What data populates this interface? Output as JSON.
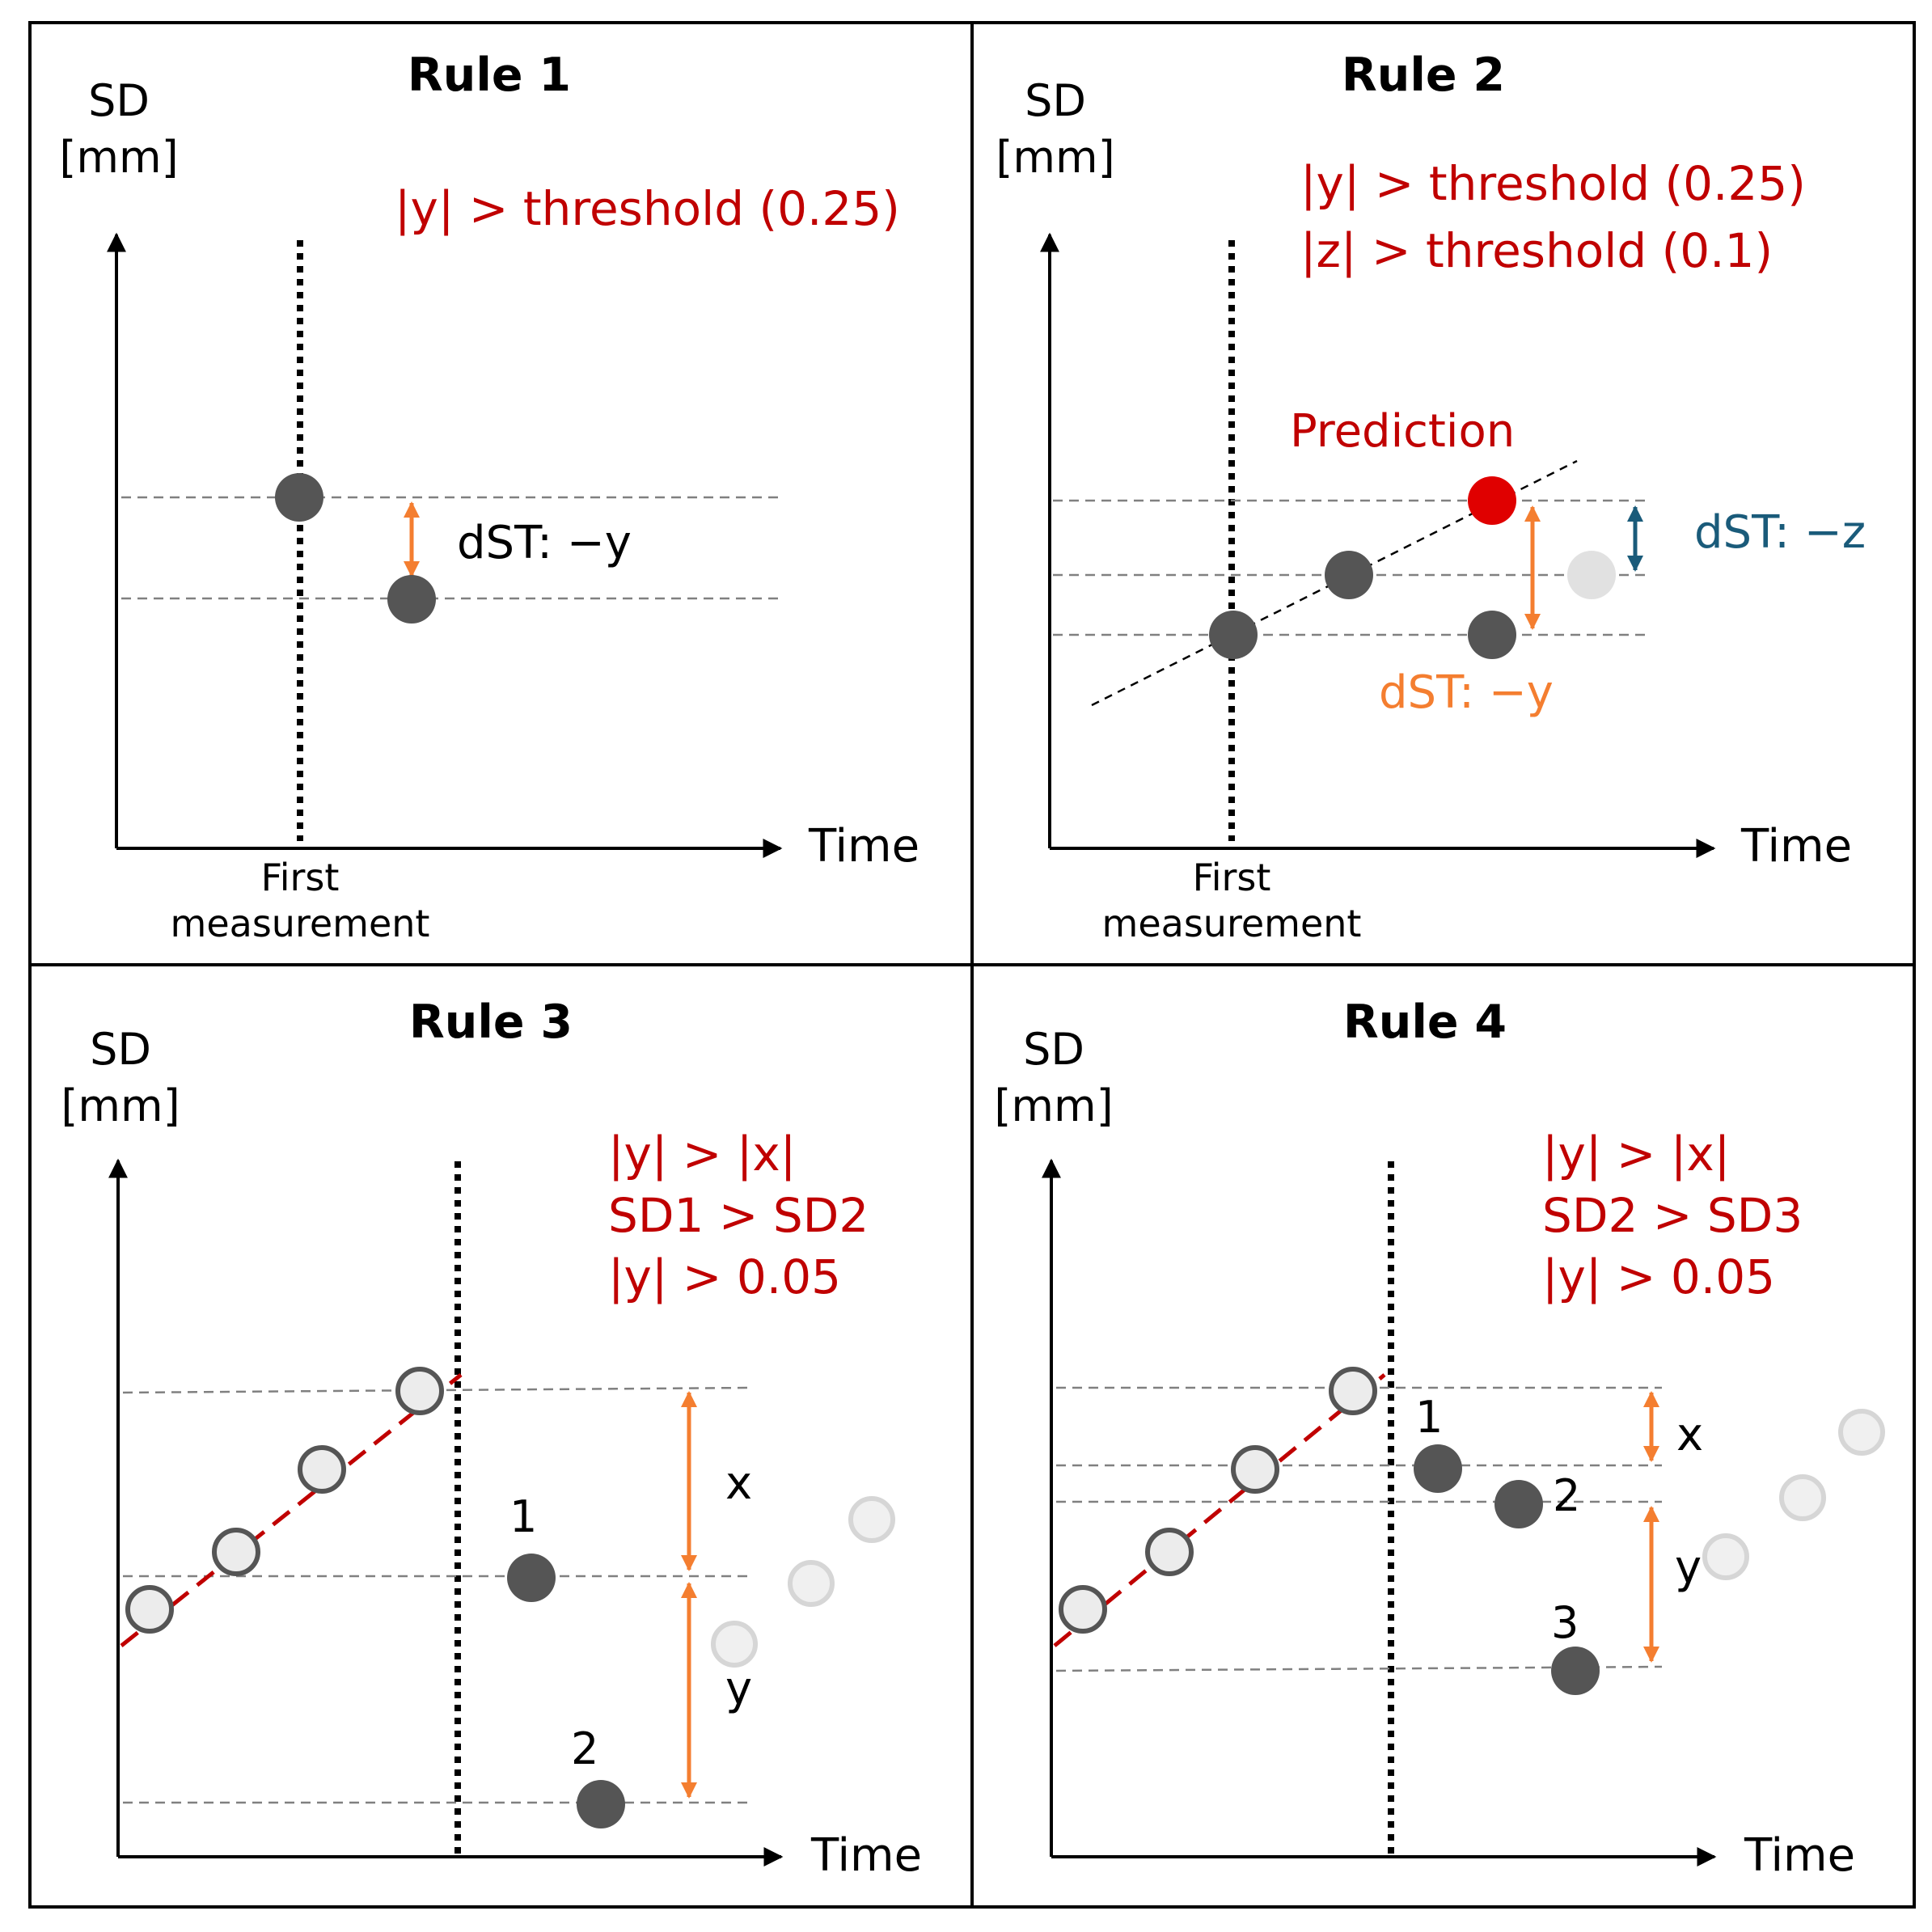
{
  "panels": [
    {
      "title": "Rule 1",
      "y_label_line1": "SD",
      "y_label_line2": "[mm]",
      "x_label": "Time",
      "first_measurement_line1": "First",
      "first_measurement_line2": "measurement",
      "conditions": [
        "|y| > threshold (0.25)"
      ],
      "annotation": "dST: −y"
    },
    {
      "title": "Rule 2",
      "y_label_line1": "SD",
      "y_label_line2": "[mm]",
      "x_label": "Time",
      "first_measurement_line1": "First",
      "first_measurement_line2": "measurement",
      "conditions": [
        "|y| > threshold (0.25)",
        "|z| > threshold (0.1)"
      ],
      "prediction_label": "Prediction",
      "annotation_z": "dST: −z",
      "annotation_y": "dST: −y"
    },
    {
      "title": "Rule 3",
      "y_label_line1": "SD",
      "y_label_line2": "[mm]",
      "x_label": "Time",
      "conditions": [
        "|y| > |x|",
        "SD1 > SD2",
        "|y| > 0.05"
      ],
      "point_labels": [
        "1",
        "2"
      ],
      "x_mark": "x",
      "y_mark": "y"
    },
    {
      "title": "Rule 4",
      "y_label_line1": "SD",
      "y_label_line2": "[mm]",
      "x_label": "Time",
      "conditions": [
        "|y| > |x|",
        "SD2 > SD3",
        "|y| > 0.05"
      ],
      "point_labels": [
        "1",
        "2",
        "3"
      ],
      "x_mark": "x",
      "y_mark": "y"
    }
  ],
  "colors": {
    "condition_red": "#c00000",
    "orange_arrow": "#f47e30",
    "blue_arrow": "#1a5b7a",
    "dark_point": "#555555",
    "light_point": "#e1e1e1",
    "prediction_point": "#e00000"
  }
}
